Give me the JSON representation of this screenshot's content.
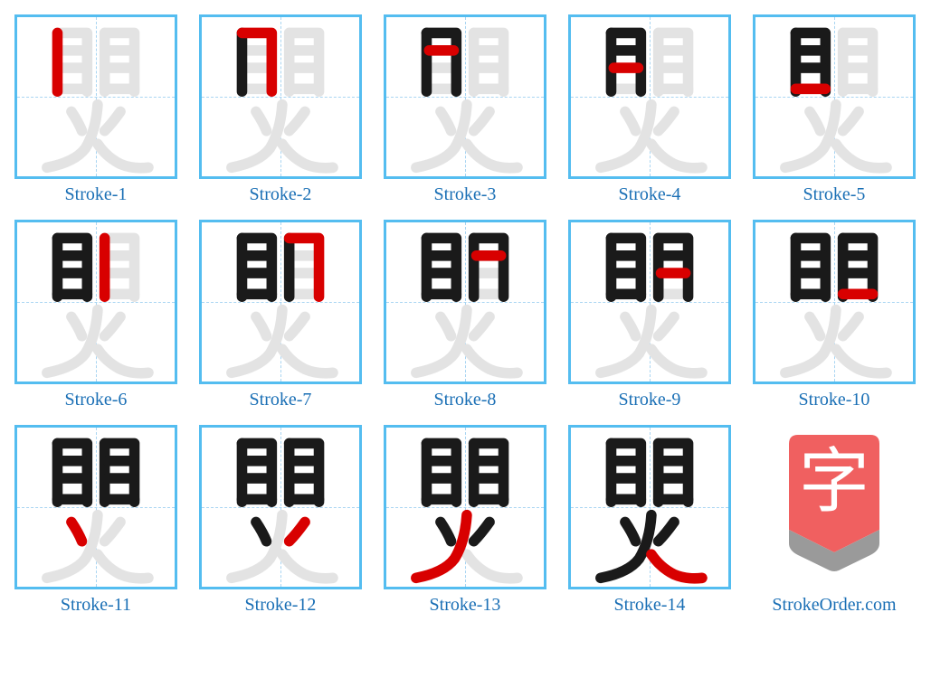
{
  "canvas": {
    "w": 180,
    "h": 182,
    "stroke_width": 12
  },
  "colors": {
    "border": "#54bdf0",
    "guide": "#a9d5f2",
    "done": "#1a1a1a",
    "current": "#d80000",
    "ghost": "#e3e3e3",
    "caption": "#1a6fb5",
    "logo_tip": "#9a9a9a",
    "logo_body": "#f06060",
    "logo_char": "#ffffff"
  },
  "caption_fontsize": 20,
  "cols": 5,
  "strokes": [
    "M46 18 L46 85",
    "M46 18 L80 18 L80 85",
    "M49 38 L77 38",
    "M49 58 L77 58",
    "M46 82 L80 82",
    "M100 18 L100 85",
    "M100 18 L134 18 L134 85",
    "M103 38 L131 38",
    "M103 58 L131 58",
    "M100 82 L134 82",
    "M62 108 Q70 120 74 130",
    "M118 108 Q108 122 100 130",
    "M92 100 Q90 130 78 150 Q66 166 34 172",
    "M92 145 Q102 160 118 168 Q132 174 150 172"
  ],
  "captions": [
    "Stroke-1",
    "Stroke-2",
    "Stroke-3",
    "Stroke-4",
    "Stroke-5",
    "Stroke-6",
    "Stroke-7",
    "Stroke-8",
    "Stroke-9",
    "Stroke-10",
    "Stroke-11",
    "Stroke-12",
    "Stroke-13",
    "Stroke-14"
  ],
  "logo": {
    "char": "字",
    "footer": "StrokeOrder.com"
  }
}
